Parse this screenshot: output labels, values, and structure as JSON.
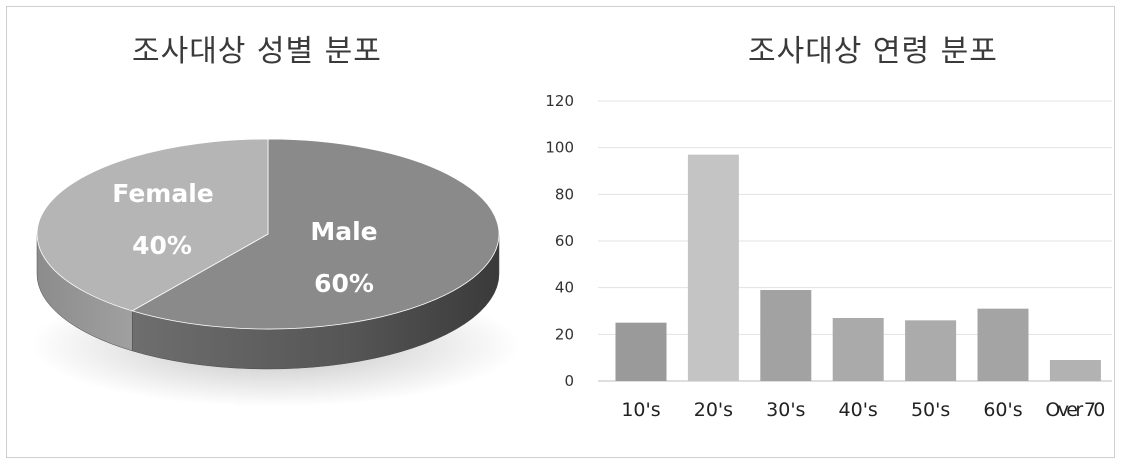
{
  "chart_data": [
    {
      "type": "pie",
      "title": "조사대상 성별 분포",
      "slices": [
        {
          "label": "Male",
          "value": 60,
          "pct_label": "60%",
          "color": "#8a8a8a"
        },
        {
          "label": "Female",
          "value": 40,
          "pct_label": "40%",
          "color": "#b5b5b5"
        }
      ],
      "style": "3d"
    },
    {
      "type": "bar",
      "title": "조사대상 연령 분포",
      "categories": [
        "10's",
        "20's",
        "30's",
        "40's",
        "50's",
        "60's",
        "Over 70"
      ],
      "values": [
        25,
        97,
        39,
        27,
        26,
        31,
        9
      ],
      "ylim": [
        0,
        120
      ],
      "yticks": [
        0,
        20,
        40,
        60,
        80,
        100,
        120
      ],
      "grid": true,
      "bar_colors": [
        "#9a9a9a",
        "#c4c4c4",
        "#a2a2a2",
        "#aaaaaa",
        "#ababab",
        "#a4a4a4",
        "#b2b2b2"
      ]
    }
  ]
}
